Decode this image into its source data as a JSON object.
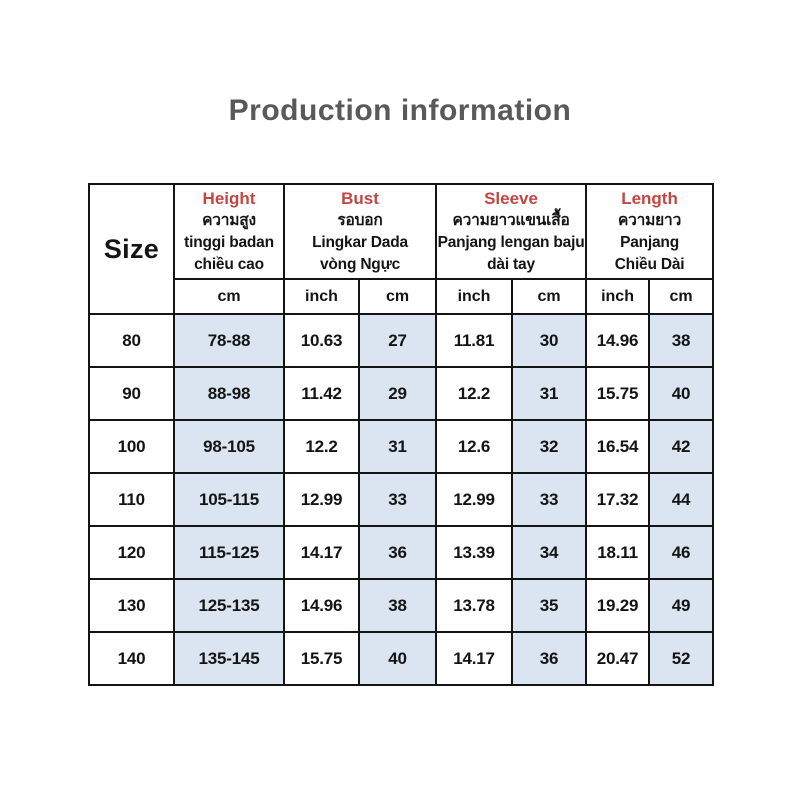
{
  "title": "Production information",
  "colors": {
    "accent_red": "#c54640",
    "cell_blue": "#dbe5f1",
    "title_gray": "#58595b"
  },
  "table": {
    "size_label": "Size",
    "unit_labels": {
      "inch": "inch",
      "cm": "cm"
    },
    "columns": {
      "height": {
        "en": "Height",
        "th": "ความสูง",
        "id": "tinggi badan",
        "vi": "chiều cao"
      },
      "bust": {
        "en": "Bust",
        "th": "รอบอก",
        "id": "Lingkar Dada",
        "vi": "vòng Ngực"
      },
      "sleeve": {
        "en": "Sleeve",
        "th": "ความยาวแขนเสื้อ",
        "id": "Panjang lengan baju",
        "vi": "dài tay"
      },
      "length": {
        "en": "Length",
        "th": "ความยาว",
        "id": "Panjang",
        "vi": "Chiều Dài"
      }
    },
    "rows": [
      {
        "size": "80",
        "height_cm": "78-88",
        "bust_inch": "10.63",
        "bust_cm": "27",
        "sleeve_inch": "11.81",
        "sleeve_cm": "30",
        "length_inch": "14.96",
        "length_cm": "38"
      },
      {
        "size": "90",
        "height_cm": "88-98",
        "bust_inch": "11.42",
        "bust_cm": "29",
        "sleeve_inch": "12.2",
        "sleeve_cm": "31",
        "length_inch": "15.75",
        "length_cm": "40"
      },
      {
        "size": "100",
        "height_cm": "98-105",
        "bust_inch": "12.2",
        "bust_cm": "31",
        "sleeve_inch": "12.6",
        "sleeve_cm": "32",
        "length_inch": "16.54",
        "length_cm": "42"
      },
      {
        "size": "110",
        "height_cm": "105-115",
        "bust_inch": "12.99",
        "bust_cm": "33",
        "sleeve_inch": "12.99",
        "sleeve_cm": "33",
        "length_inch": "17.32",
        "length_cm": "44"
      },
      {
        "size": "120",
        "height_cm": "115-125",
        "bust_inch": "14.17",
        "bust_cm": "36",
        "sleeve_inch": "13.39",
        "sleeve_cm": "34",
        "length_inch": "18.11",
        "length_cm": "46"
      },
      {
        "size": "130",
        "height_cm": "125-135",
        "bust_inch": "14.96",
        "bust_cm": "38",
        "sleeve_inch": "13.78",
        "sleeve_cm": "35",
        "length_inch": "19.29",
        "length_cm": "49"
      },
      {
        "size": "140",
        "height_cm": "135-145",
        "bust_inch": "15.75",
        "bust_cm": "40",
        "sleeve_inch": "14.17",
        "sleeve_cm": "36",
        "length_inch": "20.47",
        "length_cm": "52"
      }
    ]
  }
}
